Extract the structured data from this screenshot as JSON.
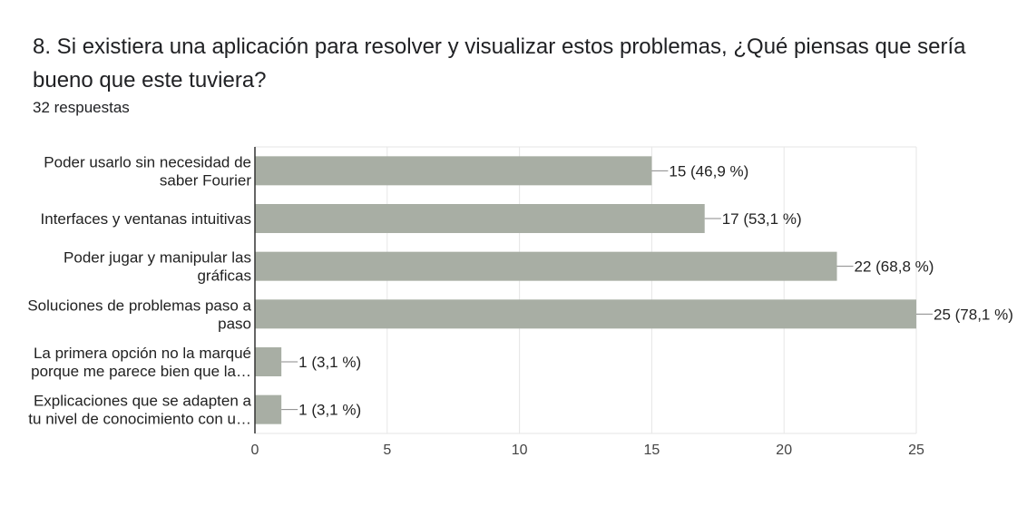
{
  "question": {
    "title": "8.  Si existiera una aplicación para resolver y visualizar estos problemas, ¿Qué piensas que sería bueno que este tuviera?",
    "responses": "32 respuestas"
  },
  "chart_data": {
    "type": "bar",
    "orientation": "horizontal",
    "categories": [
      [
        "Poder usarlo sin necesidad de",
        "saber Fourier"
      ],
      [
        "Interfaces y ventanas intuitivas"
      ],
      [
        "Poder jugar y manipular las",
        "gráficas"
      ],
      [
        "Soluciones de problemas paso a",
        "paso"
      ],
      [
        "La primera opción no la marqué",
        "porque me parece bien que la…"
      ],
      [
        "Explicaciones que se adapten a",
        "tu nivel de conocimiento con u…"
      ]
    ],
    "values": [
      15,
      17,
      22,
      25,
      1,
      1
    ],
    "data_labels": [
      "15 (46,9 %)",
      "17 (53,1 %)",
      "22 (68,8 %)",
      "25 (78,1 %)",
      "1 (3,1 %)",
      "1 (3,1 %)"
    ],
    "xlim": [
      0,
      25
    ],
    "xticks": [
      "0",
      "5",
      "10",
      "15",
      "20",
      "25"
    ],
    "grid": true,
    "bar_color": "#a8aea4"
  }
}
